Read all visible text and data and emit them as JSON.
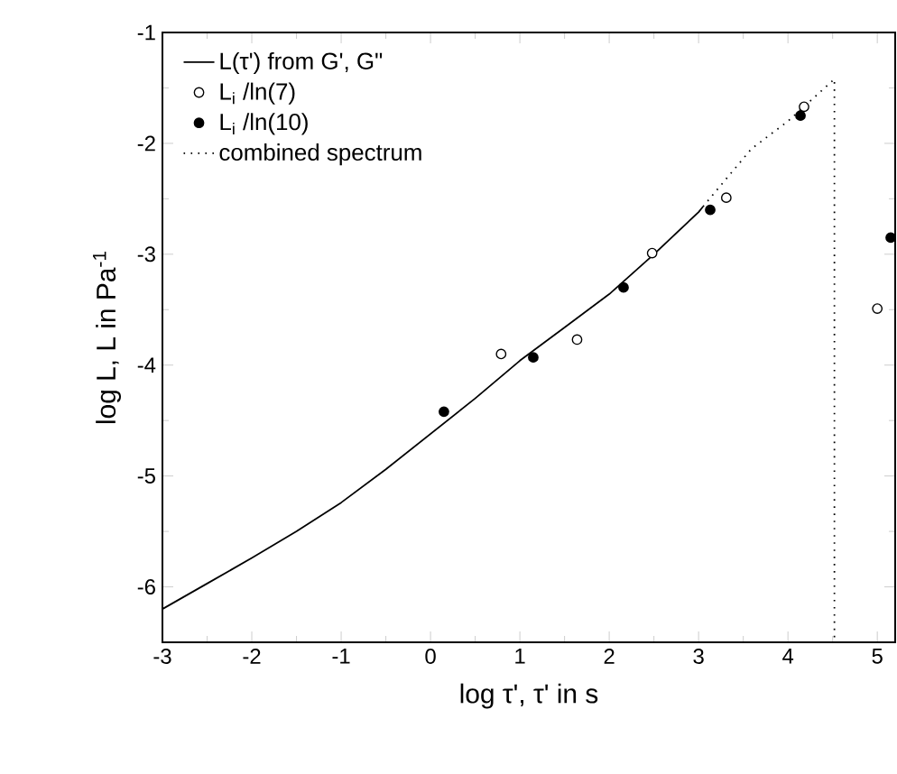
{
  "chart_data": {
    "type": "line",
    "xlabel": "log τ', τ' in s",
    "ylabel": "log L,  L in Pa$^{-1}$",
    "xlim": [
      -3,
      5.2
    ],
    "ylim": [
      -6.5,
      -1
    ],
    "xticks": [
      -3,
      -2,
      -1,
      0,
      1,
      2,
      3,
      4,
      5
    ],
    "yticks": [
      -6,
      -5,
      -4,
      -3,
      -2,
      -1
    ],
    "legend": "top left",
    "series": [
      {
        "name": "L(τ') from G', G\"",
        "color": "#000000",
        "line_style": "solid",
        "x": [
          -3,
          -2.5,
          -2,
          -1.5,
          -1,
          -0.5,
          0,
          0.5,
          1,
          1.5,
          2,
          2.5,
          3,
          3.05
        ],
        "values": [
          -6.2,
          -5.97,
          -5.74,
          -5.5,
          -5.24,
          -4.94,
          -4.62,
          -4.3,
          -3.96,
          -3.66,
          -3.36,
          -3.0,
          -2.62,
          -2.57
        ]
      },
      {
        "name": "L$_{i}$ /ln(7)",
        "type": "scatter",
        "color": "#000000",
        "x": [
          0.79,
          1.64,
          2.48,
          3.31,
          4.18,
          5.0
        ],
        "values": [
          -3.9,
          -3.77,
          -2.99,
          -2.49,
          -1.67,
          -3.49
        ]
      },
      {
        "name": "L$_{i}$ /ln(10)",
        "type": "scatter",
        "color": "#000000",
        "x": [
          0.15,
          1.15,
          2.16,
          3.13,
          4.14,
          5.15
        ],
        "values": [
          -4.42,
          -3.93,
          -3.3,
          -2.6,
          -1.75,
          -2.85
        ]
      },
      {
        "name": "combined spectrum",
        "color": "#000000",
        "line_style": "dotted",
        "x": [
          3.05,
          3.59,
          4.0,
          4.52,
          4.52
        ],
        "values": [
          -2.57,
          -2.05,
          -1.8,
          -1.42,
          -6.5
        ]
      }
    ]
  }
}
